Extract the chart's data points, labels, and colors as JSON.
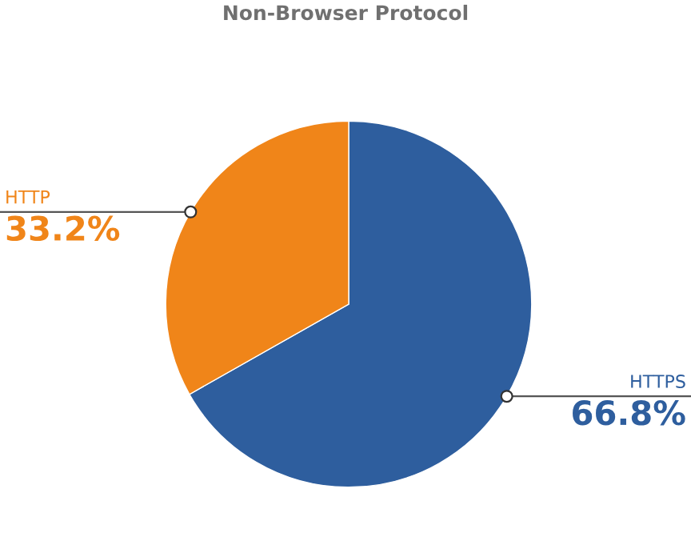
{
  "chart_data": {
    "type": "pie",
    "title": "Non-Browser Protocol",
    "categories": [
      "HTTPS",
      "HTTP"
    ],
    "values": [
      66.8,
      33.2
    ],
    "colors": [
      "#2e5e9e",
      "#f08519"
    ],
    "value_labels": [
      "66.8%",
      "33.2%"
    ]
  }
}
